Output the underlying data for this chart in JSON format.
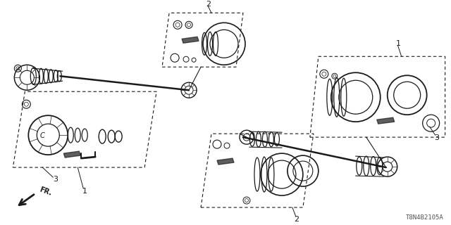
{
  "part_code": "T8N4B2105A",
  "background_color": "#ffffff",
  "line_color": "#1a1a1a",
  "gray_color": "#888888",
  "fig_width": 6.4,
  "fig_height": 3.2,
  "dpi": 100
}
